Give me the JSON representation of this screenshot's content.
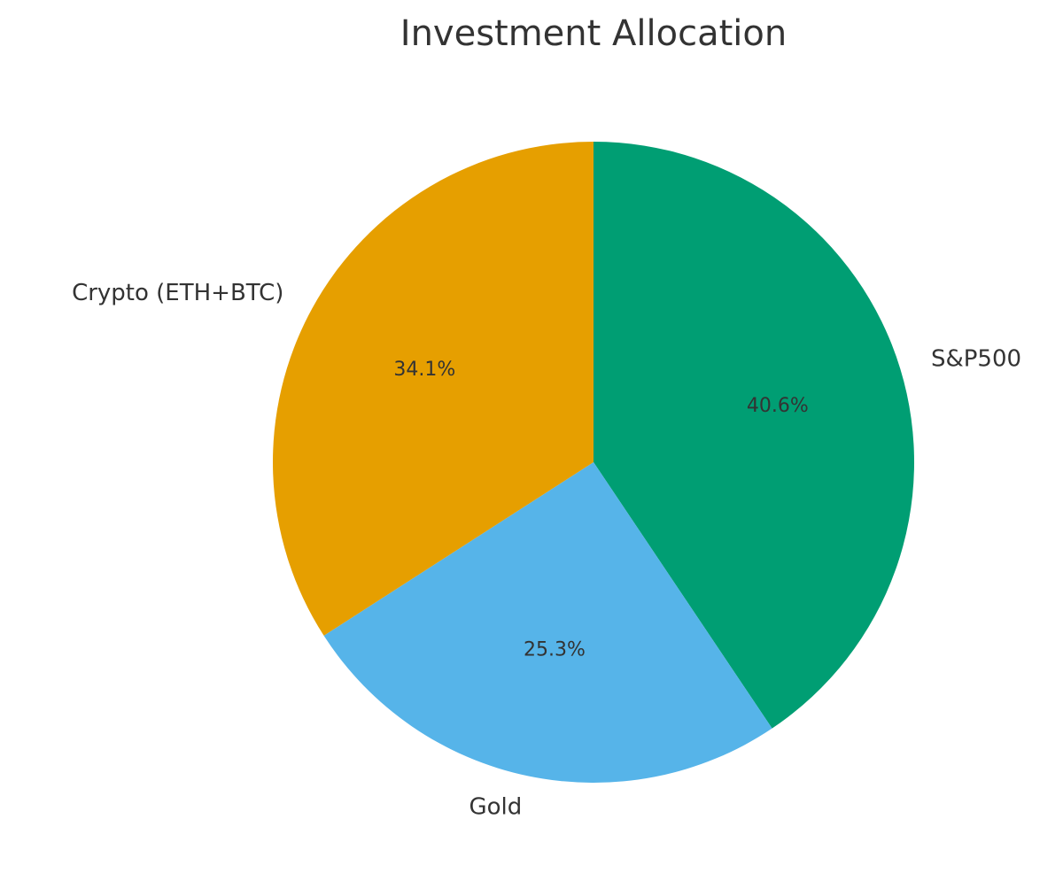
{
  "chart_data": {
    "type": "pie",
    "title": "Investment Allocation",
    "categories": [
      "S&P500",
      "Gold",
      "Crypto (ETH+BTC)"
    ],
    "values": [
      40.6,
      25.3,
      34.1
    ],
    "value_labels": [
      "40.6%",
      "25.3%",
      "34.1%"
    ],
    "colors": [
      "#009E73",
      "#56B4E9",
      "#E69F00"
    ]
  }
}
